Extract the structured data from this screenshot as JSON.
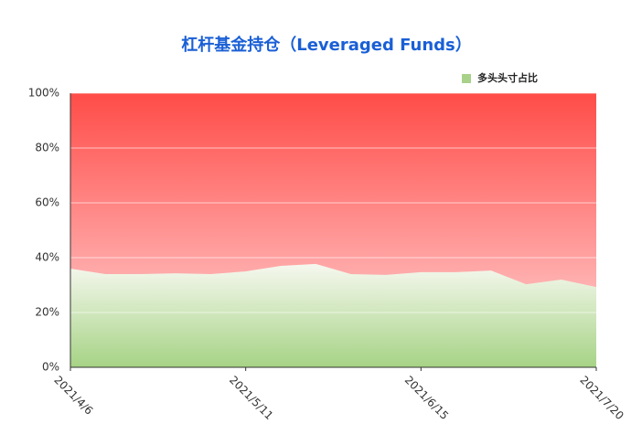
{
  "chart_data": {
    "type": "area",
    "title": "杠杆基金持仓（Leveraged Funds）",
    "categories": [
      "2021/4/6",
      null,
      null,
      null,
      null,
      "2021/5/11",
      null,
      null,
      null,
      null,
      "2021/6/15",
      null,
      null,
      null,
      null,
      "2021/7/20"
    ],
    "series": [
      {
        "name": "多头头寸占比",
        "color": "#a8d18a",
        "values": [
          36,
          34,
          34,
          34.3,
          34,
          35,
          37,
          37.7,
          34,
          33.7,
          34.7,
          34.7,
          35.3,
          30.3,
          32,
          29.3
        ]
      }
    ],
    "ylim": [
      0,
      100
    ],
    "yticks": [
      {
        "value": 0,
        "label": "0%"
      },
      {
        "value": 20,
        "label": "20%"
      },
      {
        "value": 40,
        "label": "40%"
      },
      {
        "value": 60,
        "label": "60%"
      },
      {
        "value": 80,
        "label": "80%"
      },
      {
        "value": 100,
        "label": "100%"
      }
    ],
    "grid": true,
    "legend": "top-right"
  }
}
